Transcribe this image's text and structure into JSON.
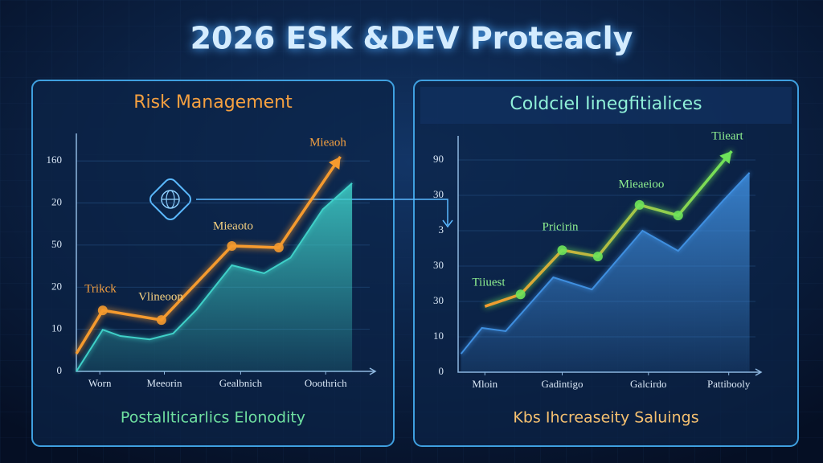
{
  "title": "2026 ESK &DEV Proteacly",
  "chart_data": [
    {
      "type": "line",
      "title": "Risk Management",
      "footer": "Postallticarlics Elonodity",
      "xlim": [
        0,
        10
      ],
      "xticks": [
        {
          "value": 0.8,
          "label": "Worn"
        },
        {
          "value": 3.0,
          "label": "Meeorin"
        },
        {
          "value": 5.6,
          "label": "Gealbnich"
        },
        {
          "value": 8.5,
          "label": "Ooothrich"
        }
      ],
      "ylim": [
        0,
        55
      ],
      "yticks": [
        0,
        10,
        20,
        {
          "value": 30,
          "label": "50"
        },
        {
          "value": 40,
          "label": "20"
        },
        {
          "value": 50,
          "label": "160"
        }
      ],
      "grid": true,
      "series": [
        {
          "type": "area",
          "color": "#3fd0c8",
          "x": [
            0,
            0.9,
            1.5,
            2.5,
            3.3,
            4.1,
            5.3,
            6.4,
            7.3,
            8.4,
            9.4
          ],
          "values": [
            0,
            9.9,
            8.4,
            7.6,
            9,
            14.7,
            25.2,
            23.3,
            27,
            38.5,
            44.7
          ]
        },
        {
          "type": "line",
          "color": "#f59a2e",
          "x": [
            0,
            0.9,
            2.9,
            5.3,
            6.9,
            9.0
          ],
          "values": [
            4.2,
            14.5,
            12.2,
            29.8,
            29.4,
            51
          ]
        }
      ],
      "annotations": [
        "Mieaoh",
        "Mieaoto",
        "Vlineoon",
        "Trikck"
      ]
    },
    {
      "type": "line",
      "title": "Coldciel Iinegfitialices",
      "footer": "Kbs Ihcreaseity Saluings",
      "xlim": [
        0,
        10
      ],
      "xticks": [
        {
          "value": 0.9,
          "label": "Mloin"
        },
        {
          "value": 3.5,
          "label": "Gadintigo"
        },
        {
          "value": 6.4,
          "label": "Galcirdo"
        },
        {
          "value": 9.1,
          "label": "Pattibooly"
        }
      ],
      "ylim": [
        0,
        65
      ],
      "yticks": [
        0,
        10,
        {
          "value": 20,
          "label": "30"
        },
        30,
        {
          "value": 40,
          "label": "3"
        },
        {
          "value": 50,
          "label": "30"
        },
        {
          "value": 60,
          "label": "90"
        }
      ],
      "grid": true,
      "series": [
        {
          "type": "area",
          "color": "#3f8fe0",
          "x": [
            0.1,
            0.8,
            1.6,
            3.2,
            4.5,
            6.2,
            7.4,
            8.9,
            9.8
          ],
          "values": [
            5.2,
            12.5,
            11.6,
            26.8,
            23.4,
            40,
            34.3,
            48.4,
            56.4
          ]
        },
        {
          "type": "line",
          "color": "#6ee35a",
          "x": [
            0.9,
            2.1,
            3.5,
            4.7,
            6.1,
            7.4,
            9.2
          ],
          "values": [
            18.6,
            22,
            34.5,
            32.7,
            47.3,
            44.3,
            62.5
          ]
        }
      ],
      "annotations": [
        "Tiieart",
        "Mieaeioo",
        "Pricirin",
        "Tiiuest"
      ]
    }
  ]
}
